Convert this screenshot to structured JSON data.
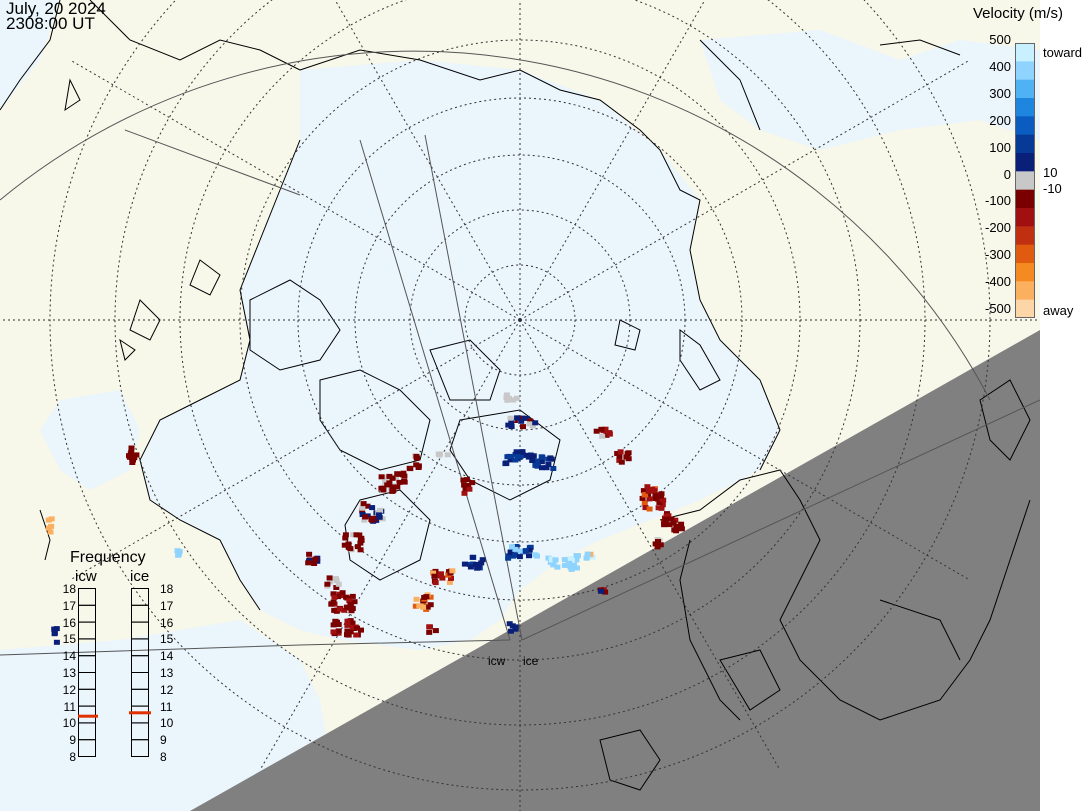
{
  "header": {
    "date": "July, 20 2024",
    "time": "2308:00 UT"
  },
  "velocity_scale": {
    "title": "Velocity (m/s)",
    "ticks": [
      "500",
      "400",
      "300",
      "200",
      "100",
      "0",
      "-100",
      "-200",
      "-300",
      "-400",
      "-500"
    ],
    "toward_label": "toward",
    "away_label": "away",
    "plus10": "10",
    "minus10": "-10",
    "colors": [
      "#c9f0ff",
      "#8fd3ff",
      "#4fb2f5",
      "#1f86e0",
      "#0b5cc0",
      "#063a96",
      "#0a1f78",
      "#c8c8c8",
      "#7a0000",
      "#a01010",
      "#c03010",
      "#e05a10",
      "#f58a20",
      "#fbb060",
      "#fdd6a8"
    ]
  },
  "frequency_panel": {
    "title": "Frequency",
    "icw_label": "icw",
    "ice_label": "ice",
    "ticks": [
      "18",
      "17",
      "16",
      "15",
      "14",
      "13",
      "12",
      "11",
      "10",
      "9",
      "8"
    ],
    "icw_value_mhz": 10.4,
    "ice_value_mhz": 10.6,
    "marker_color": "#e03000"
  },
  "radar_sites": {
    "icw": "icw",
    "ice": "ice"
  },
  "map_colors": {
    "ocean": "#eaf5fc",
    "land": "#f7f7ea",
    "night_shade": "#808080",
    "coast": "#000000"
  }
}
